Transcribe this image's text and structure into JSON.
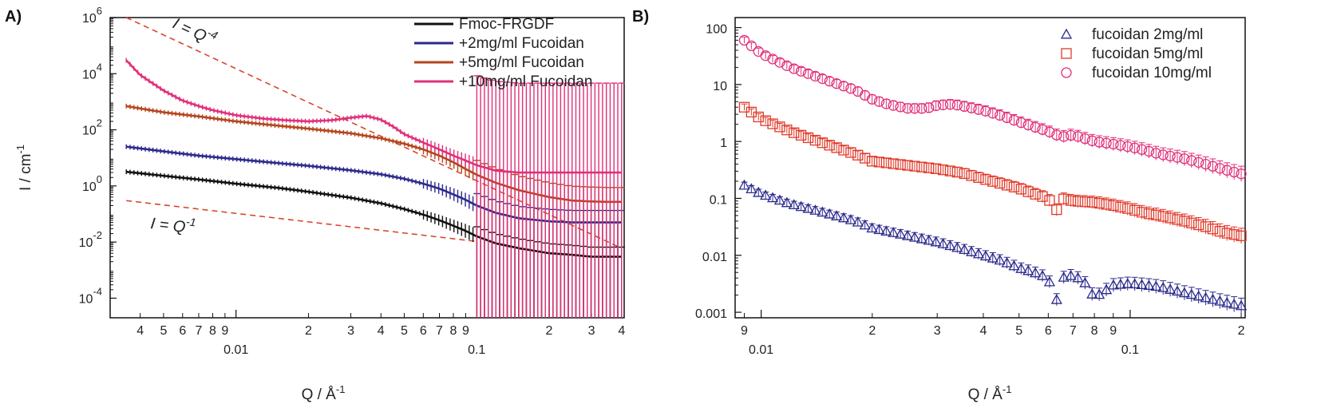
{
  "chart_data": [
    {
      "panel_label": "A)",
      "type": "line",
      "xscale": "log",
      "yscale": "log",
      "xlabel": "Q / Å",
      "xlabel_sup": "-1",
      "ylabel": "I / cm",
      "ylabel_sup": "-1",
      "xlim": [
        0.003,
        0.41
      ],
      "ylim": [
        2e-05,
        1000000
      ],
      "ytick_values": [
        0.0001,
        0.01,
        1,
        100,
        10000,
        1000000
      ],
      "ytick_bases": [
        "10",
        "10",
        "10",
        "10",
        "10",
        "10"
      ],
      "ytick_exps": [
        "-4",
        "-2",
        "0",
        "2",
        "4",
        "6"
      ],
      "xtick_major": [
        {
          "value": 0.01,
          "label": "0.01"
        },
        {
          "value": 0.1,
          "label": "0.1"
        }
      ],
      "xtick_minor": [
        {
          "value": 0.004,
          "label": "4"
        },
        {
          "value": 0.005,
          "label": "5"
        },
        {
          "value": 0.006,
          "label": "6"
        },
        {
          "value": 0.007,
          "label": "7"
        },
        {
          "value": 0.008,
          "label": "8"
        },
        {
          "value": 0.009,
          "label": "9"
        },
        {
          "value": 0.02,
          "label": "2"
        },
        {
          "value": 0.03,
          "label": "3"
        },
        {
          "value": 0.04,
          "label": "4"
        },
        {
          "value": 0.05,
          "label": "5"
        },
        {
          "value": 0.06,
          "label": "6"
        },
        {
          "value": 0.07,
          "label": "7"
        },
        {
          "value": 0.08,
          "label": "8"
        },
        {
          "value": 0.09,
          "label": "9"
        },
        {
          "value": 0.2,
          "label": "2"
        },
        {
          "value": 0.3,
          "label": "3"
        },
        {
          "value": 0.4,
          "label": "4"
        }
      ],
      "legend_position": "top-right",
      "series": [
        {
          "name": "Fmoc-FRGDF",
          "color": "#111111",
          "x": [
            0.0035,
            0.005,
            0.007,
            0.01,
            0.015,
            0.02,
            0.03,
            0.04,
            0.05,
            0.06,
            0.07,
            0.08,
            0.09,
            0.1,
            0.12,
            0.15,
            0.2,
            0.25,
            0.3,
            0.35,
            0.4
          ],
          "y": [
            3.2,
            2.3,
            1.7,
            1.2,
            0.85,
            0.62,
            0.38,
            0.24,
            0.15,
            0.095,
            0.06,
            0.038,
            0.025,
            0.016,
            0.009,
            0.006,
            0.004,
            0.0035,
            0.003,
            0.003,
            0.003
          ]
        },
        {
          "name": "+2mg/ml Fucoidan",
          "color": "#2b2a8c",
          "x": [
            0.0035,
            0.005,
            0.007,
            0.01,
            0.015,
            0.02,
            0.03,
            0.04,
            0.05,
            0.06,
            0.07,
            0.08,
            0.09,
            0.1,
            0.12,
            0.15,
            0.2,
            0.25,
            0.3,
            0.35,
            0.4
          ],
          "y": [
            25,
            17,
            12,
            9,
            6.5,
            5.2,
            3.6,
            2.6,
            1.8,
            1.2,
            0.8,
            0.5,
            0.32,
            0.2,
            0.11,
            0.07,
            0.055,
            0.05,
            0.05,
            0.05,
            0.05
          ]
        },
        {
          "name": "+5mg/ml Fucoidan",
          "color": "#b5451d",
          "x": [
            0.0035,
            0.005,
            0.007,
            0.01,
            0.015,
            0.02,
            0.03,
            0.04,
            0.05,
            0.06,
            0.07,
            0.08,
            0.09,
            0.1,
            0.12,
            0.15,
            0.2,
            0.25,
            0.3,
            0.35,
            0.4
          ],
          "y": [
            700,
            420,
            300,
            200,
            140,
            110,
            75,
            50,
            32,
            20,
            12,
            7,
            4,
            2.5,
            1.3,
            0.7,
            0.4,
            0.3,
            0.28,
            0.27,
            0.27
          ]
        },
        {
          "name": "+10mg/ml Fucoidan",
          "color": "#e0307a",
          "x": [
            0.0035,
            0.004,
            0.005,
            0.006,
            0.007,
            0.008,
            0.01,
            0.013,
            0.016,
            0.02,
            0.025,
            0.03,
            0.035,
            0.04,
            0.045,
            0.05,
            0.06,
            0.07,
            0.08,
            0.09,
            0.1,
            0.12,
            0.15,
            0.2,
            0.25,
            0.3,
            0.35,
            0.4
          ],
          "y": [
            30000,
            9000,
            2500,
            1100,
            700,
            500,
            330,
            250,
            220,
            200,
            220,
            270,
            310,
            230,
            130,
            70,
            35,
            20,
            12,
            8,
            5.5,
            3.5,
            3,
            3,
            3,
            3,
            3,
            3
          ]
        }
      ],
      "guide_lines": [
        {
          "label_base": "I = Q",
          "label_exp": "-4",
          "color": "#d9472b",
          "x": [
            0.0035,
            0.4
          ],
          "y": [
            1000000,
            0.006
          ]
        },
        {
          "label_base": "I = Q",
          "label_exp": "-1",
          "color": "#d9472b",
          "x": [
            0.0035,
            0.1
          ],
          "y": [
            0.3,
            0.0105
          ]
        }
      ]
    },
    {
      "panel_label": "B)",
      "type": "scatter",
      "xscale": "log",
      "yscale": "log",
      "xlabel": "Q / Å",
      "xlabel_sup": "-1",
      "xlim": [
        0.0085,
        0.205
      ],
      "ylim": [
        0.0008,
        150
      ],
      "ytick_labels": [
        {
          "value": 0.001,
          "label": "0.001"
        },
        {
          "value": 0.01,
          "label": "0.01"
        },
        {
          "value": 0.1,
          "label": "0.1"
        },
        {
          "value": 1,
          "label": "1"
        },
        {
          "value": 10,
          "label": "10"
        },
        {
          "value": 100,
          "label": "100"
        }
      ],
      "xtick_major": [
        {
          "value": 0.01,
          "label": "0.01"
        },
        {
          "value": 0.1,
          "label": "0.1"
        }
      ],
      "xtick_minor": [
        {
          "value": 0.009,
          "label": "9"
        },
        {
          "value": 0.02,
          "label": "2"
        },
        {
          "value": 0.03,
          "label": "3"
        },
        {
          "value": 0.04,
          "label": "4"
        },
        {
          "value": 0.05,
          "label": "5"
        },
        {
          "value": 0.06,
          "label": "6"
        },
        {
          "value": 0.07,
          "label": "7"
        },
        {
          "value": 0.08,
          "label": "8"
        },
        {
          "value": 0.09,
          "label": "9"
        },
        {
          "value": 0.2,
          "label": "2"
        }
      ],
      "legend_position": "top-right",
      "series": [
        {
          "name": "fucoidan 2mg/ml",
          "marker": "triangle",
          "color": "#2b2a8c",
          "x": [
            0.009,
            0.01,
            0.012,
            0.015,
            0.018,
            0.02,
            0.025,
            0.03,
            0.035,
            0.04,
            0.045,
            0.05,
            0.055,
            0.06,
            0.063,
            0.065,
            0.07,
            0.075,
            0.08,
            0.09,
            0.1,
            0.11,
            0.12,
            0.14,
            0.16,
            0.18,
            0.2
          ],
          "y": [
            0.17,
            0.12,
            0.08,
            0.055,
            0.04,
            0.03,
            0.022,
            0.017,
            0.013,
            0.01,
            0.008,
            0.006,
            0.005,
            0.004,
            0.0015,
            0.004,
            0.0045,
            0.0035,
            0.0018,
            0.003,
            0.0032,
            0.003,
            0.0028,
            0.0022,
            0.0018,
            0.0015,
            0.0013
          ]
        },
        {
          "name": "fucoidan 5mg/ml",
          "marker": "square",
          "color": "#e03a2a",
          "x": [
            0.009,
            0.01,
            0.012,
            0.015,
            0.018,
            0.02,
            0.025,
            0.03,
            0.035,
            0.04,
            0.045,
            0.05,
            0.055,
            0.06,
            0.063,
            0.065,
            0.07,
            0.08,
            0.09,
            0.1,
            0.11,
            0.12,
            0.14,
            0.16,
            0.18,
            0.2
          ],
          "y": [
            4,
            2.5,
            1.5,
            0.9,
            0.6,
            0.45,
            0.38,
            0.33,
            0.28,
            0.22,
            0.18,
            0.15,
            0.12,
            0.1,
            0.06,
            0.1,
            0.09,
            0.085,
            0.075,
            0.065,
            0.055,
            0.05,
            0.04,
            0.032,
            0.025,
            0.022
          ]
        },
        {
          "name": "fucoidan 10mg/ml",
          "marker": "circle",
          "color": "#e0307a",
          "x": [
            0.009,
            0.01,
            0.012,
            0.015,
            0.018,
            0.02,
            0.022,
            0.025,
            0.028,
            0.03,
            0.033,
            0.035,
            0.04,
            0.045,
            0.05,
            0.055,
            0.06,
            0.065,
            0.07,
            0.08,
            0.09,
            0.1,
            0.11,
            0.12,
            0.14,
            0.16,
            0.18,
            0.2
          ],
          "y": [
            60,
            35,
            20,
            12,
            8,
            5.5,
            4.5,
            3.8,
            3.8,
            4.3,
            4.5,
            4.2,
            3.5,
            2.8,
            2.2,
            1.8,
            1.5,
            1.2,
            1.3,
            1.0,
            0.9,
            0.8,
            0.7,
            0.6,
            0.5,
            0.4,
            0.32,
            0.27
          ]
        }
      ]
    }
  ]
}
